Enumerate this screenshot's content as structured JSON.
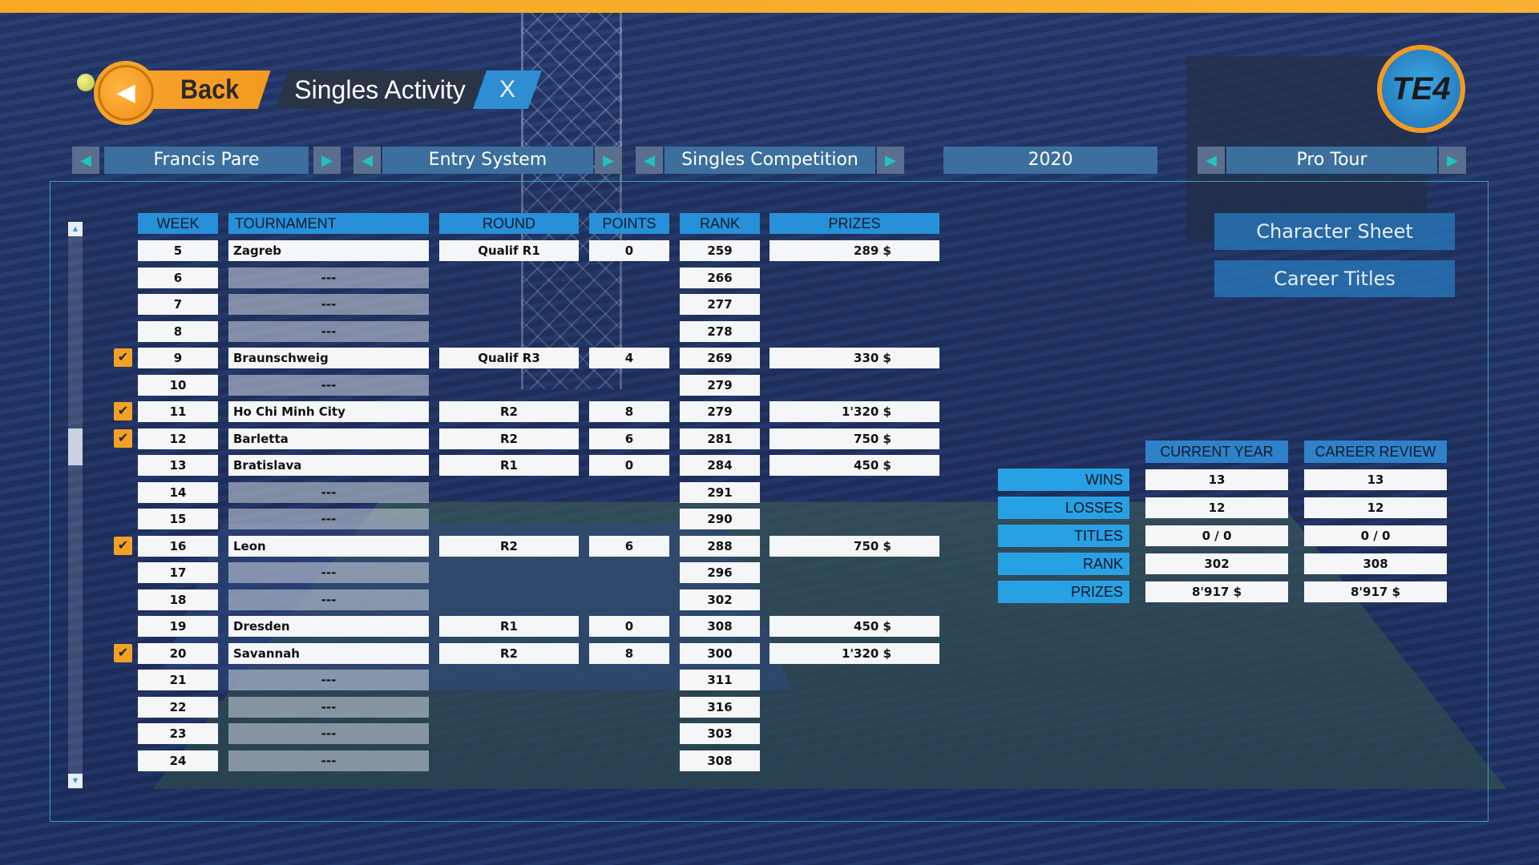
{
  "header": {
    "back_label": "Back",
    "title": "Singles Activity",
    "close_label": "X",
    "logo_text": "TE4"
  },
  "selectors": {
    "player": "Francis Pare",
    "entry": "Entry System",
    "competition": "Singles Competition",
    "year": "2020",
    "tour": "Pro Tour"
  },
  "table": {
    "columns": [
      "WEEK",
      "TOURNAMENT",
      "ROUND",
      "POINTS",
      "RANK",
      "PRIZES"
    ],
    "rows": [
      {
        "week": "5",
        "tournament": "Zagreb",
        "round": "Qualif R1",
        "points": "0",
        "rank": "259",
        "prizes": "289 $",
        "checked": false
      },
      {
        "week": "6",
        "tournament": "---",
        "round": "",
        "points": "",
        "rank": "266",
        "prizes": "",
        "checked": false
      },
      {
        "week": "7",
        "tournament": "---",
        "round": "",
        "points": "",
        "rank": "277",
        "prizes": "",
        "checked": false
      },
      {
        "week": "8",
        "tournament": "---",
        "round": "",
        "points": "",
        "rank": "278",
        "prizes": "",
        "checked": false
      },
      {
        "week": "9",
        "tournament": "Braunschweig",
        "round": "Qualif R3",
        "points": "4",
        "rank": "269",
        "prizes": "330 $",
        "checked": true
      },
      {
        "week": "10",
        "tournament": "---",
        "round": "",
        "points": "",
        "rank": "279",
        "prizes": "",
        "checked": false
      },
      {
        "week": "11",
        "tournament": "Ho Chi Minh City",
        "round": "R2",
        "points": "8",
        "rank": "279",
        "prizes": "1'320 $",
        "checked": true
      },
      {
        "week": "12",
        "tournament": "Barletta",
        "round": "R2",
        "points": "6",
        "rank": "281",
        "prizes": "750 $",
        "checked": true
      },
      {
        "week": "13",
        "tournament": "Bratislava",
        "round": "R1",
        "points": "0",
        "rank": "284",
        "prizes": "450 $",
        "checked": false
      },
      {
        "week": "14",
        "tournament": "---",
        "round": "",
        "points": "",
        "rank": "291",
        "prizes": "",
        "checked": false
      },
      {
        "week": "15",
        "tournament": "---",
        "round": "",
        "points": "",
        "rank": "290",
        "prizes": "",
        "checked": false
      },
      {
        "week": "16",
        "tournament": "Leon",
        "round": "R2",
        "points": "6",
        "rank": "288",
        "prizes": "750 $",
        "checked": true
      },
      {
        "week": "17",
        "tournament": "---",
        "round": "",
        "points": "",
        "rank": "296",
        "prizes": "",
        "checked": false
      },
      {
        "week": "18",
        "tournament": "---",
        "round": "",
        "points": "",
        "rank": "302",
        "prizes": "",
        "checked": false
      },
      {
        "week": "19",
        "tournament": "Dresden",
        "round": "R1",
        "points": "0",
        "rank": "308",
        "prizes": "450 $",
        "checked": false
      },
      {
        "week": "20",
        "tournament": "Savannah",
        "round": "R2",
        "points": "8",
        "rank": "300",
        "prizes": "1'320 $",
        "checked": true
      },
      {
        "week": "21",
        "tournament": "---",
        "round": "",
        "points": "",
        "rank": "311",
        "prizes": "",
        "checked": false
      },
      {
        "week": "22",
        "tournament": "---",
        "round": "",
        "points": "",
        "rank": "316",
        "prizes": "",
        "checked": false
      },
      {
        "week": "23",
        "tournament": "---",
        "round": "",
        "points": "",
        "rank": "303",
        "prizes": "",
        "checked": false
      },
      {
        "week": "24",
        "tournament": "---",
        "round": "",
        "points": "",
        "rank": "308",
        "prizes": "",
        "checked": false
      }
    ]
  },
  "side_buttons": {
    "character_sheet": "Character Sheet",
    "career_titles": "Career Titles"
  },
  "stats": {
    "headers": [
      "CURRENT YEAR",
      "CAREER REVIEW"
    ],
    "rows": [
      {
        "label": "WINS",
        "current": "13",
        "career": "13"
      },
      {
        "label": "LOSSES",
        "current": "12",
        "career": "12"
      },
      {
        "label": "TITLES",
        "current": "0 / 0",
        "career": "0 / 0"
      },
      {
        "label": "RANK",
        "current": "302",
        "career": "308"
      },
      {
        "label": "PRIZES",
        "current": "8'917 $",
        "career": "8'917 $"
      }
    ]
  },
  "colors": {
    "accent_orange": "#f7a02a",
    "header_blue": "#2790d8",
    "check_orange": "#f3a125"
  }
}
